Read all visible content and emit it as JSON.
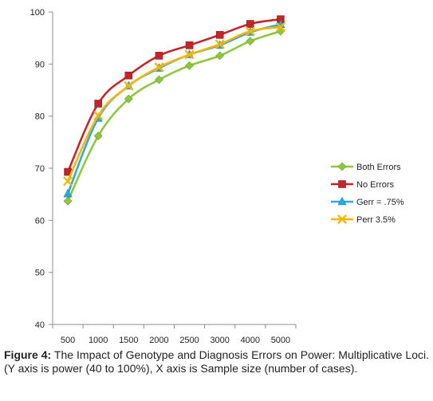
{
  "chart_data": {
    "type": "line",
    "categories": [
      "500",
      "1000",
      "1500",
      "2000",
      "2500",
      "3000",
      "4000",
      "5000"
    ],
    "yticks": [
      "40",
      "50",
      "60",
      "70",
      "80",
      "90",
      "100"
    ],
    "ylim": [
      40,
      100
    ],
    "grid": false,
    "legend_position": "right",
    "series": [
      {
        "name": "Both Errors",
        "color": "#8dc63f",
        "marker": "diamond",
        "values": [
          63.7,
          76.2,
          83.3,
          87.0,
          89.7,
          91.6,
          94.4,
          96.3
        ]
      },
      {
        "name": "No Errors",
        "color": "#c0272d",
        "marker": "square",
        "values": [
          69.3,
          82.4,
          87.8,
          91.6,
          93.6,
          95.6,
          97.7,
          98.6
        ]
      },
      {
        "name": "Gerr = .75%",
        "color": "#29abe2",
        "marker": "triangle",
        "values": [
          65.1,
          79.6,
          85.8,
          89.2,
          91.8,
          93.6,
          96.1,
          97.6
        ]
      },
      {
        "name": "Perr 3.5%",
        "color": "#f2b705",
        "marker": "x",
        "values": [
          67.5,
          80.1,
          85.8,
          89.4,
          91.8,
          93.8,
          96.3,
          97.1
        ]
      }
    ]
  },
  "caption": {
    "label": "Figure 4:",
    "text": " The Impact of Genotype and Diagnosis Errors on Power: Multiplicative Loci. (Y axis is power (40 to 100%), X axis is Sample size (number of cases)."
  }
}
